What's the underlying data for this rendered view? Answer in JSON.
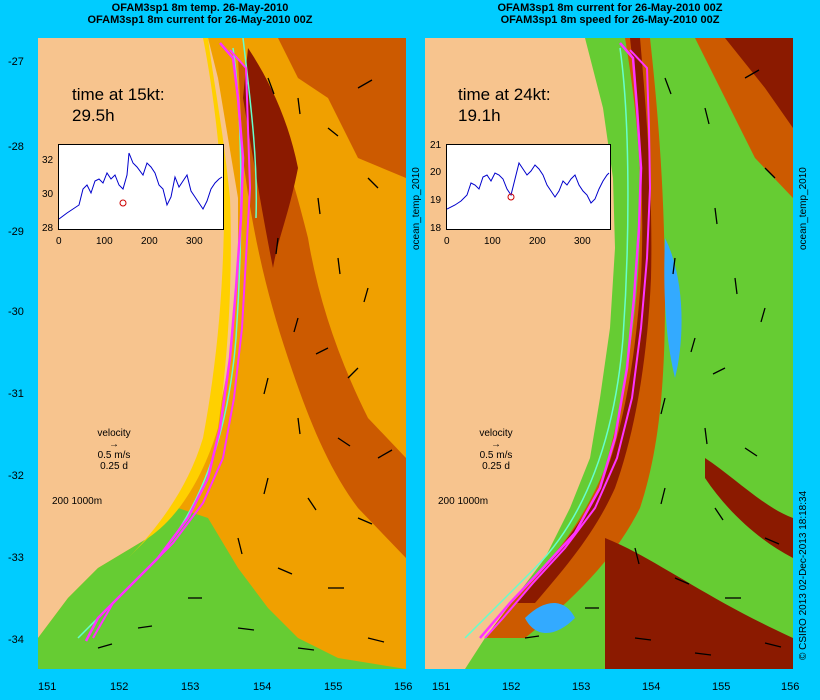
{
  "left_panel": {
    "title_line1": "OFAM3sp1 8m temp. 26-May-2010",
    "title_line2": "OFAM3sp1 8m current for 26-May-2010 00Z",
    "time_label": "time at 15kt:",
    "time_value": "29.5h",
    "inset_y_ticks": [
      "32",
      "30",
      "28"
    ],
    "inset_x_ticks": [
      "0",
      "100",
      "200",
      "300"
    ],
    "velocity_label": "velocity",
    "velocity_scale": "0.5 m/s",
    "velocity_time": "0.25 d",
    "depth_labels": "200  1000m"
  },
  "right_panel": {
    "title_line1": "OFAM3sp1 8m current for 26-May-2010 00Z",
    "title_line2": "OFAM3sp1 8m speed for 26-May-2010 00Z",
    "time_label": "time at 24kt:",
    "time_value": "19.1h",
    "inset_y_ticks": [
      "21",
      "20",
      "19",
      "18"
    ],
    "inset_x_ticks": [
      "0",
      "100",
      "200",
      "300"
    ],
    "velocity_label": "velocity",
    "velocity_scale": "0.5 m/s",
    "velocity_time": "0.25 d",
    "depth_labels": "200  1000m"
  },
  "axes": {
    "lat_ticks": [
      "-27",
      "-28",
      "-29",
      "-30",
      "-31",
      "-32",
      "-33",
      "-34"
    ],
    "lon_ticks": [
      "151",
      "152",
      "153",
      "154",
      "155",
      "156"
    ]
  },
  "side_text": {
    "mid_label": "ocean_temp_2010",
    "right_label": "ocean_temp_2010",
    "credit": "© CSIRO 2013  02-Dec-2013 18:18:34"
  },
  "colors": {
    "background": "#00ccff",
    "land": "#f7c48e",
    "warm": "#cc5a00",
    "hot": "#8b1a00",
    "mid": "#f0a000",
    "cool": "#66cc33",
    "track": "#ff33ff",
    "isobath": "#66ffcc"
  }
}
